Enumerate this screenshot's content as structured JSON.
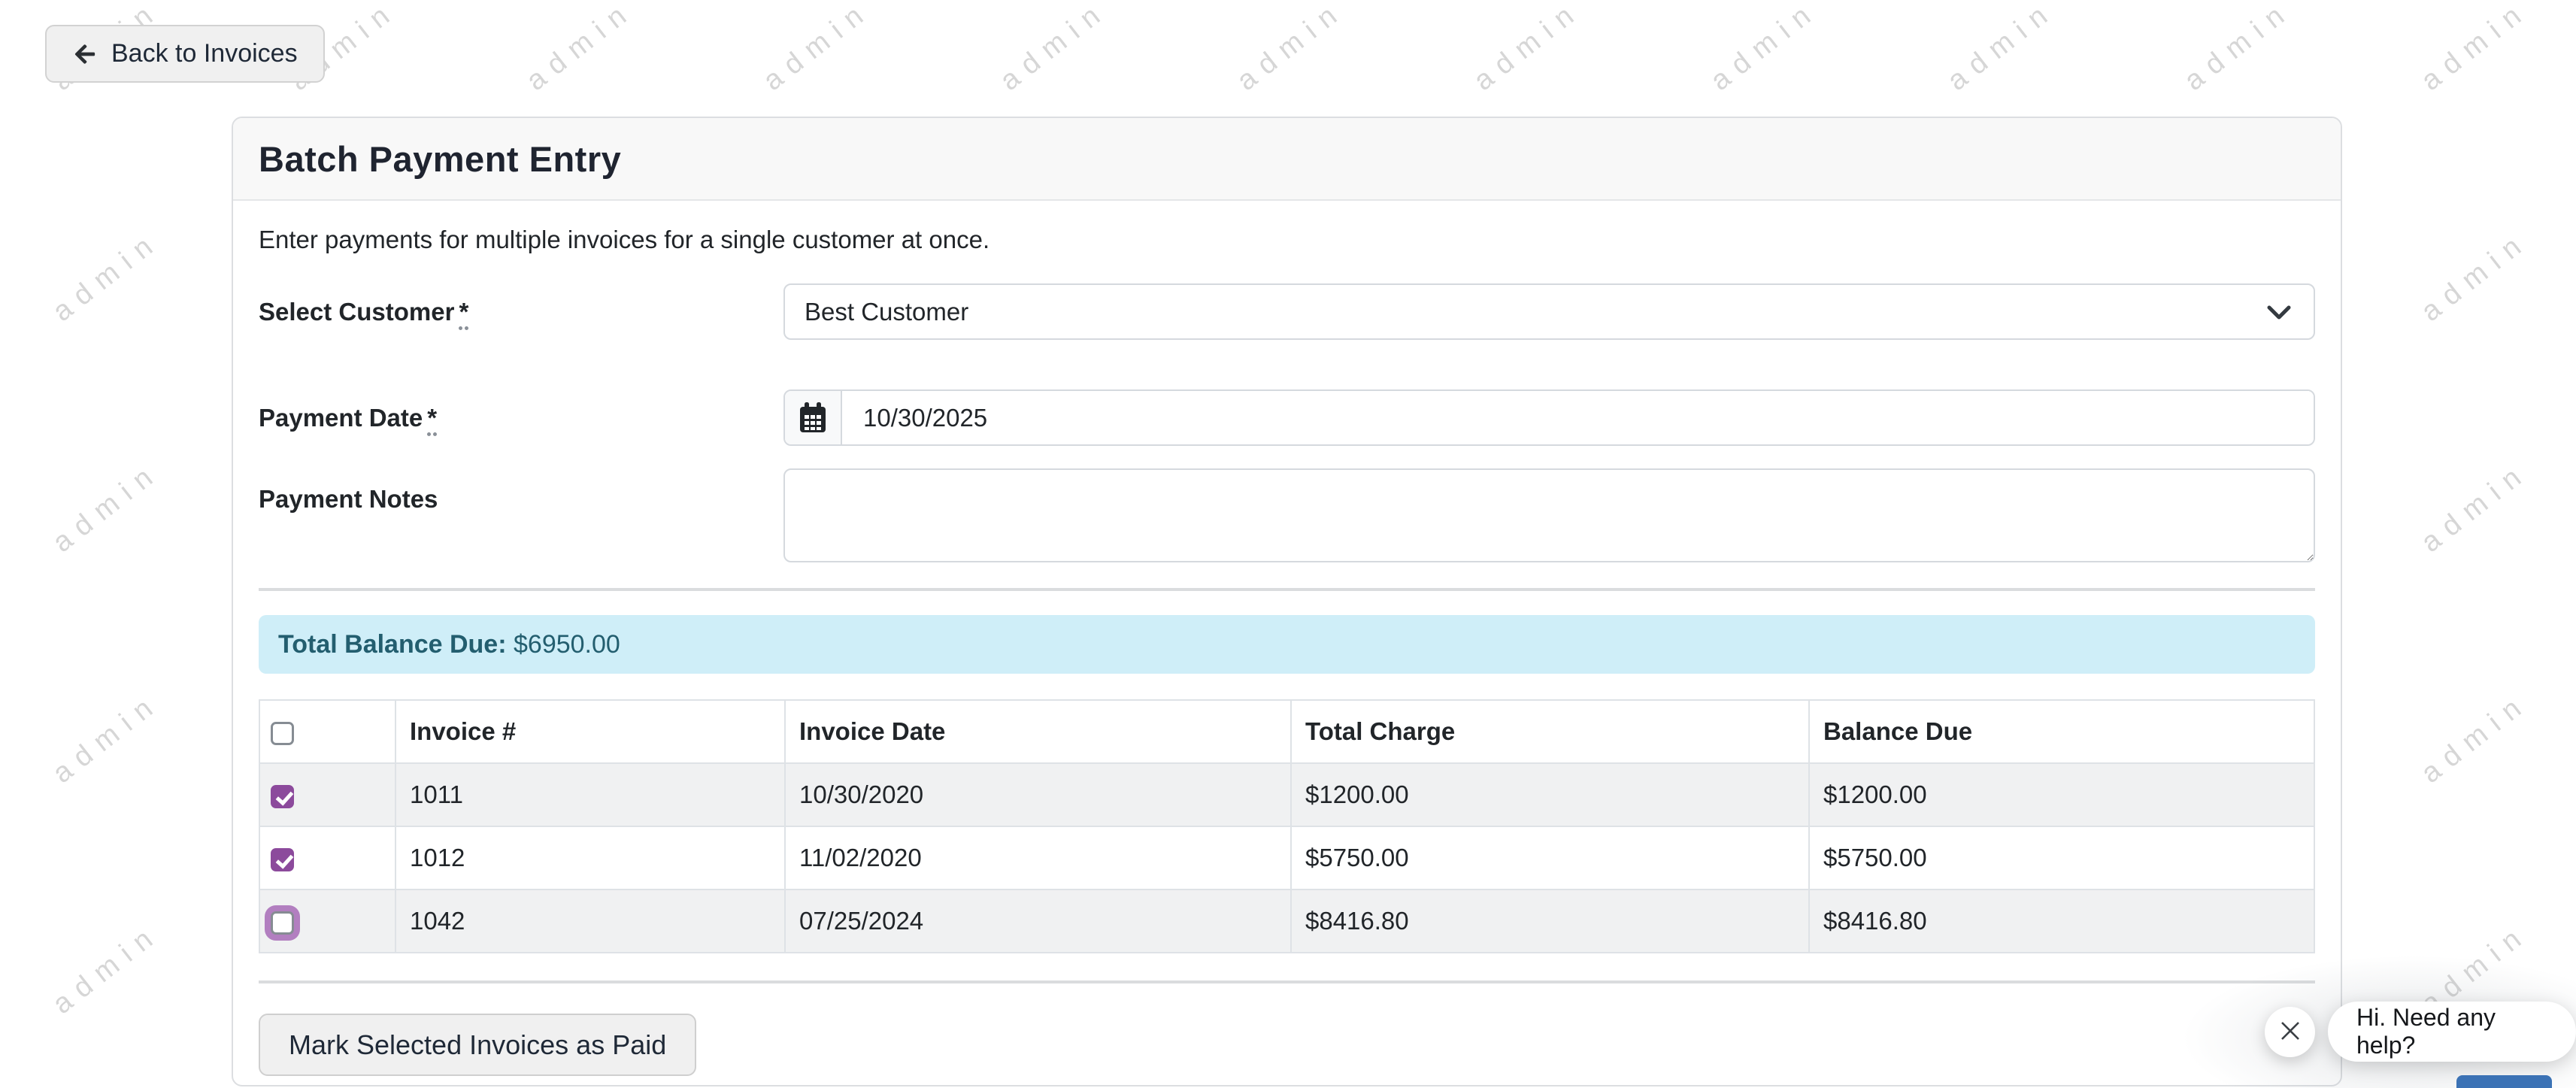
{
  "page": {
    "watermark": "admin"
  },
  "back_button": {
    "label": "Back to Invoices"
  },
  "card": {
    "title": "Batch Payment Entry",
    "intro": "Enter payments for multiple invoices for a single customer at once.",
    "customer": {
      "label": "Select Customer",
      "required_mark": "*",
      "value": "Best Customer"
    },
    "payment_date": {
      "label": "Payment Date",
      "required_mark": "*",
      "value": "10/30/2025"
    },
    "notes": {
      "label": "Payment Notes",
      "value": ""
    },
    "total_balance": {
      "label": "Total Balance Due:",
      "amount": "$6950.00"
    },
    "table": {
      "headers": {
        "invoice": "Invoice #",
        "date": "Invoice Date",
        "total": "Total Charge",
        "balance": "Balance Due"
      },
      "rows": [
        {
          "checked": true,
          "focused": false,
          "invoice": "1011",
          "date": "10/30/2020",
          "total": "$1200.00",
          "balance": "$1200.00"
        },
        {
          "checked": true,
          "focused": false,
          "invoice": "1012",
          "date": "11/02/2020",
          "total": "$5750.00",
          "balance": "$5750.00"
        },
        {
          "checked": false,
          "focused": true,
          "invoice": "1042",
          "date": "07/25/2024",
          "total": "$8416.80",
          "balance": "$8416.80"
        }
      ]
    },
    "submit_button": {
      "label": "Mark Selected Invoices as Paid"
    }
  },
  "chat": {
    "message": "Hi. Need any help?"
  },
  "colors": {
    "accent_purple": "#8c4a9c",
    "info_bg": "#cfeef8",
    "info_text": "#235e6f",
    "chat_blue": "#3b72b5",
    "watermark_gray": "#d6d6d6"
  }
}
